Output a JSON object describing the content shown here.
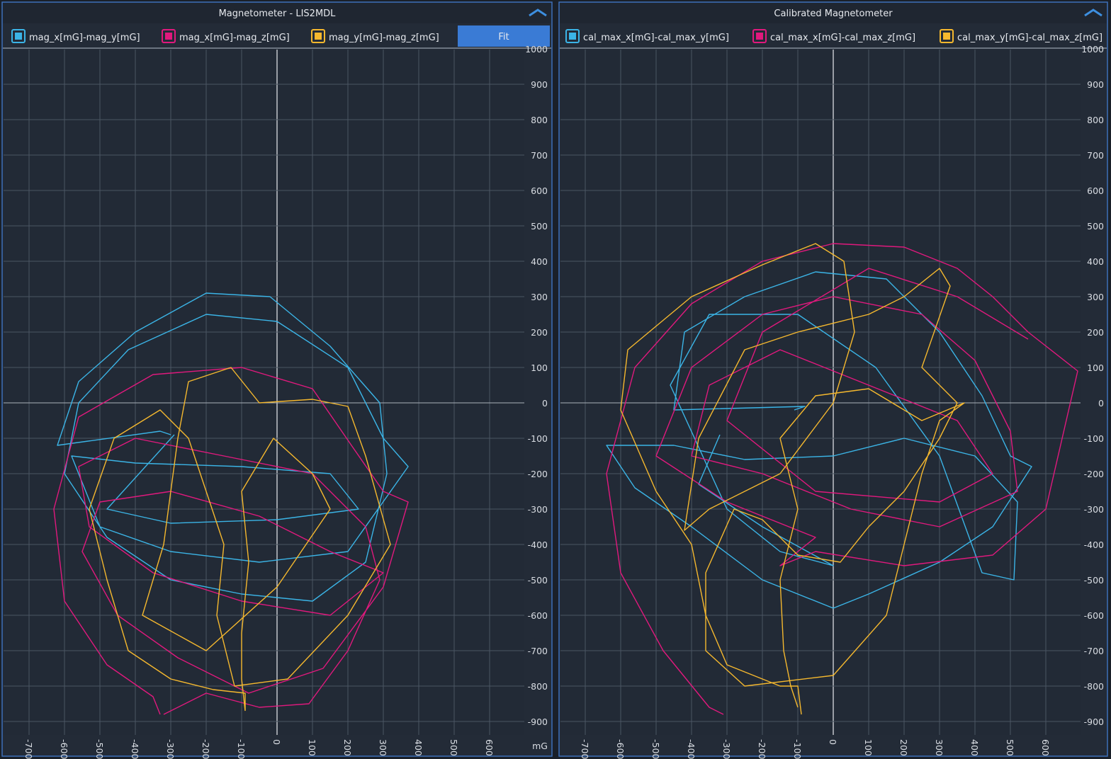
{
  "chart_data": [
    {
      "type": "line",
      "title": "Magnetometer - LIS2MDL",
      "unit": "mG",
      "button": "Fit",
      "xlim": [
        -772,
        698
      ],
      "ylim": [
        -938,
        998
      ],
      "xticks": [
        -700,
        -600,
        -500,
        -400,
        -300,
        -200,
        -100,
        0,
        100,
        200,
        300,
        400,
        500,
        600
      ],
      "yticks": [
        -900,
        -800,
        -700,
        -600,
        -500,
        -400,
        -300,
        -200,
        -100,
        0,
        100,
        200,
        300,
        400,
        500,
        600,
        700,
        800,
        900,
        1000
      ],
      "grid": true,
      "series": [
        {
          "name": "mag_x[mG]-mag_y[mG]",
          "color": "#3bb4e6",
          "x": [
            -300,
            -330,
            -620,
            -560,
            -400,
            -200,
            -20,
            150,
            290,
            310,
            250,
            100,
            -100,
            -300,
            -480,
            -600,
            -560,
            -420,
            -200,
            0,
            200,
            300,
            370,
            200,
            -50,
            -300,
            -500,
            -580,
            -400,
            -100,
            150,
            230,
            0,
            -300,
            -480,
            -290
          ],
          "values": [
            -90,
            -80,
            -120,
            60,
            200,
            310,
            300,
            160,
            0,
            -200,
            -450,
            -560,
            -540,
            -500,
            -380,
            -200,
            0,
            150,
            250,
            230,
            100,
            -100,
            -180,
            -420,
            -450,
            -420,
            -350,
            -150,
            -170,
            -180,
            -200,
            -300,
            -330,
            -340,
            -300,
            -90
          ]
        },
        {
          "name": "mag_x[mG]-mag_z[mG]",
          "color": "#e0197d",
          "x": [
            -330,
            -350,
            -480,
            -600,
            -630,
            -560,
            -350,
            -100,
            100,
            210,
            300,
            370,
            300,
            130,
            -80,
            -280,
            -450,
            -550,
            -500,
            -300,
            -50,
            150,
            300,
            150,
            -100,
            -350,
            -530,
            -560,
            -400,
            -150,
            100,
            250,
            290,
            200,
            90,
            -50,
            -200,
            -320
          ],
          "values": [
            -880,
            -830,
            -740,
            -560,
            -300,
            -40,
            80,
            100,
            40,
            -120,
            -250,
            -280,
            -520,
            -750,
            -820,
            -720,
            -600,
            -420,
            -280,
            -250,
            -320,
            -420,
            -480,
            -600,
            -560,
            -480,
            -350,
            -180,
            -100,
            -150,
            -200,
            -350,
            -500,
            -700,
            -850,
            -860,
            -820,
            -880
          ]
        },
        {
          "name": "mag_y[mG]-mag_z[mG]",
          "color": "#f5b82e",
          "x": [
            -90,
            -90,
            -180,
            -300,
            -420,
            -480,
            -530,
            -460,
            -330,
            -250,
            -200,
            -150,
            -170,
            -120,
            30,
            200,
            320,
            250,
            200,
            100,
            -50,
            -130,
            -250,
            -280,
            -320,
            -380,
            -200,
            0,
            150,
            100,
            -10,
            -100,
            -80,
            -100,
            -100,
            -90
          ],
          "values": [
            -870,
            -820,
            -810,
            -780,
            -700,
            -500,
            -300,
            -100,
            -20,
            -100,
            -250,
            -400,
            -600,
            -800,
            -780,
            -600,
            -400,
            -150,
            -10,
            10,
            0,
            100,
            60,
            -100,
            -400,
            -600,
            -700,
            -520,
            -300,
            -200,
            -100,
            -250,
            -450,
            -650,
            -780,
            -870
          ]
        }
      ]
    },
    {
      "type": "line",
      "title": "Calibrated Magnetometer",
      "xlim": [
        -770,
        698
      ],
      "ylim": [
        -938,
        998
      ],
      "xticks": [
        -700,
        -600,
        -500,
        -400,
        -300,
        -200,
        -100,
        0,
        100,
        200,
        300,
        400,
        500,
        600
      ],
      "yticks": [
        -900,
        -800,
        -700,
        -600,
        -500,
        -400,
        -300,
        -200,
        -100,
        0,
        100,
        200,
        300,
        400,
        500,
        600,
        700,
        800,
        900,
        1000
      ],
      "grid": true,
      "series": [
        {
          "name": "cal_max_x[mG]-cal_max_y[mG]",
          "color": "#3bb4e6",
          "x": [
            -110,
            -80,
            -450,
            -420,
            -250,
            -50,
            150,
            300,
            420,
            500,
            560,
            450,
            300,
            100,
            0,
            -200,
            -400,
            -560,
            -640,
            -450,
            -250,
            0,
            200,
            400,
            520,
            510,
            420,
            300,
            120,
            -100,
            -350,
            -460,
            -300,
            -150,
            0,
            -200,
            -380,
            -320
          ],
          "values": [
            -20,
            -10,
            -20,
            200,
            300,
            370,
            350,
            200,
            20,
            -150,
            -180,
            -350,
            -450,
            -540,
            -580,
            -500,
            -350,
            -240,
            -120,
            -120,
            -160,
            -150,
            -100,
            -150,
            -280,
            -500,
            -480,
            -150,
            100,
            250,
            250,
            50,
            -300,
            -420,
            -460,
            -350,
            -230,
            -90
          ]
        },
        {
          "name": "cal_max_x[mG]-cal_max_z[mG]",
          "color": "#e0197d",
          "x": [
            -310,
            -350,
            -480,
            -600,
            -640,
            -560,
            -400,
            -200,
            0,
            200,
            350,
            450,
            550,
            690,
            600,
            450,
            200,
            -50,
            -150,
            -50,
            -300,
            -500,
            -400,
            -200,
            0,
            250,
            400,
            500,
            520,
            300,
            50,
            -200,
            -400,
            -350,
            -150,
            100,
            350,
            450,
            300,
            -50,
            -300,
            -200,
            100,
            350,
            550
          ],
          "values": [
            -880,
            -860,
            -700,
            -480,
            -200,
            100,
            280,
            400,
            450,
            440,
            380,
            300,
            200,
            90,
            -300,
            -430,
            -460,
            -420,
            -460,
            -380,
            -280,
            -150,
            100,
            250,
            300,
            250,
            120,
            -80,
            -250,
            -350,
            -300,
            -200,
            -150,
            50,
            150,
            50,
            -50,
            -200,
            -280,
            -250,
            -50,
            200,
            380,
            300,
            180
          ]
        },
        {
          "name": "cal_max_y[mG]-cal_max_z[mG]",
          "color": "#f5b82e",
          "x": [
            -90,
            -100,
            -150,
            -300,
            -360,
            -400,
            -500,
            -600,
            -580,
            -400,
            -200,
            -50,
            30,
            60,
            0,
            -150,
            -350,
            -420,
            -380,
            -250,
            -100,
            100,
            200,
            300,
            330,
            250,
            350,
            300,
            200,
            100,
            20,
            -100,
            -200,
            -280,
            -360,
            -360,
            -250,
            0,
            150,
            200,
            250,
            300,
            370,
            250,
            100,
            -50,
            -150,
            -100,
            -150,
            -140,
            -120,
            -100
          ],
          "values": [
            -880,
            -800,
            -800,
            -740,
            -600,
            -400,
            -250,
            -20,
            150,
            300,
            390,
            450,
            400,
            200,
            0,
            -200,
            -300,
            -360,
            -100,
            150,
            200,
            250,
            300,
            380,
            330,
            100,
            0,
            -100,
            -250,
            -350,
            -450,
            -430,
            -330,
            -300,
            -480,
            -700,
            -800,
            -770,
            -600,
            -400,
            -200,
            -50,
            0,
            -50,
            40,
            20,
            -100,
            -300,
            -500,
            -700,
            -800,
            -860
          ]
        }
      ]
    }
  ]
}
